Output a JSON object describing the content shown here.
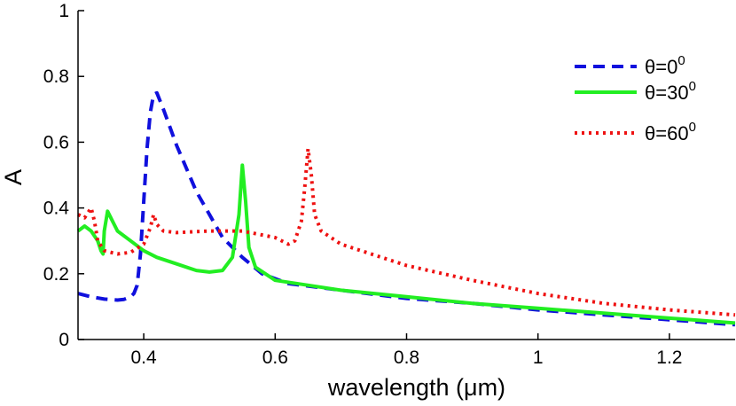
{
  "chart_data": {
    "type": "line",
    "xlabel": "wavelength (μm)",
    "ylabel": "A",
    "xlim": [
      0.3,
      1.3
    ],
    "ylim": [
      0,
      1
    ],
    "x_ticks": [
      0.4,
      0.6,
      0.8,
      1.0,
      1.2
    ],
    "x_tick_labels": [
      "0.4",
      "0.6",
      "0.8",
      "1",
      "1.2"
    ],
    "y_ticks": [
      0,
      0.2,
      0.4,
      0.6,
      0.8,
      1.0
    ],
    "y_tick_labels": [
      "0",
      "0.2",
      "0.4",
      "0.6",
      "0.8",
      "1"
    ],
    "grid": false,
    "legend_position": "top-right",
    "series": [
      {
        "name": "θ=0",
        "superscript": "0",
        "color": "#1010dd",
        "style": "dashed",
        "x": [
          0.3,
          0.32,
          0.34,
          0.36,
          0.37,
          0.38,
          0.385,
          0.39,
          0.395,
          0.4,
          0.405,
          0.41,
          0.415,
          0.42,
          0.43,
          0.45,
          0.48,
          0.5,
          0.52,
          0.55,
          0.58,
          0.62,
          0.7,
          0.8,
          0.9,
          1.0,
          1.1,
          1.2,
          1.3
        ],
        "values": [
          0.14,
          0.13,
          0.123,
          0.12,
          0.122,
          0.13,
          0.14,
          0.165,
          0.26,
          0.42,
          0.58,
          0.69,
          0.745,
          0.75,
          0.7,
          0.59,
          0.45,
          0.38,
          0.31,
          0.25,
          0.2,
          0.17,
          0.15,
          0.125,
          0.11,
          0.09,
          0.075,
          0.06,
          0.045
        ]
      },
      {
        "name": "θ=30",
        "superscript": "0",
        "color": "#22ee22",
        "style": "solid",
        "x": [
          0.3,
          0.31,
          0.32,
          0.33,
          0.335,
          0.338,
          0.34,
          0.345,
          0.35,
          0.36,
          0.38,
          0.4,
          0.42,
          0.45,
          0.48,
          0.5,
          0.52,
          0.535,
          0.545,
          0.55,
          0.555,
          0.56,
          0.57,
          0.6,
          0.7,
          0.8,
          0.9,
          1.0,
          1.1,
          1.2,
          1.3
        ],
        "values": [
          0.33,
          0.345,
          0.33,
          0.3,
          0.27,
          0.26,
          0.33,
          0.39,
          0.37,
          0.33,
          0.3,
          0.27,
          0.25,
          0.23,
          0.21,
          0.205,
          0.21,
          0.25,
          0.38,
          0.53,
          0.42,
          0.28,
          0.22,
          0.18,
          0.15,
          0.13,
          0.11,
          0.095,
          0.08,
          0.065,
          0.05
        ]
      },
      {
        "name": "θ=60",
        "superscript": "0",
        "color": "#ee1111",
        "style": "dotted",
        "x": [
          0.3,
          0.31,
          0.32,
          0.325,
          0.33,
          0.34,
          0.36,
          0.38,
          0.4,
          0.41,
          0.415,
          0.42,
          0.43,
          0.45,
          0.5,
          0.55,
          0.6,
          0.62,
          0.63,
          0.64,
          0.645,
          0.65,
          0.655,
          0.66,
          0.67,
          0.7,
          0.8,
          0.9,
          1.0,
          1.1,
          1.2,
          1.3
        ],
        "values": [
          0.38,
          0.37,
          0.4,
          0.36,
          0.3,
          0.27,
          0.26,
          0.265,
          0.29,
          0.34,
          0.38,
          0.35,
          0.33,
          0.325,
          0.33,
          0.33,
          0.31,
          0.29,
          0.3,
          0.36,
          0.46,
          0.58,
          0.5,
          0.38,
          0.33,
          0.29,
          0.225,
          0.18,
          0.14,
          0.11,
          0.09,
          0.075
        ]
      }
    ]
  }
}
